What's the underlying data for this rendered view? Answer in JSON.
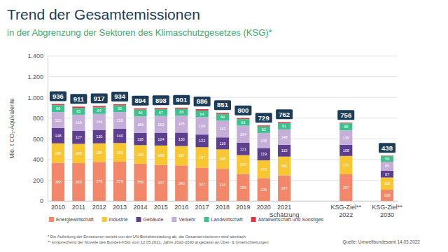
{
  "chart_data": {
    "type": "bar",
    "stacked": true,
    "data_labels": true,
    "grid": true,
    "legend": "bottom",
    "title": "Trend der Gesamtemissionen",
    "subtitle": "in der Abgrenzung der Sektoren des Klimaschutzgesetzes (KSG)*",
    "y_label": "Mio. t CO₂-Äquivalente",
    "categories": [
      "2010",
      "2011",
      "2012",
      "2013",
      "2014",
      "2015",
      "2016",
      "2017",
      "2018",
      "2019",
      "2020",
      "2021 Schätzung",
      null,
      null,
      "KSG-Ziel** 2022",
      null,
      "KSG-Ziel** 2030"
    ],
    "series": [
      {
        "name": "Energiewirtschaft",
        "color": "#f2876a",
        "values": [
          368,
          365,
          376,
          379,
          359,
          347,
          343,
          322,
          310,
          259,
          220,
          247,
          null,
          null,
          257,
          null,
          108
        ]
      },
      {
        "name": "Industrie",
        "color": "#f8c630",
        "values": [
          188,
          186,
          180,
          180,
          180,
          188,
          187,
          197,
          188,
          183,
          172,
          181,
          null,
          null,
          177,
          null,
          118
        ]
      },
      {
        "name": "Gebäude",
        "color": "#5c3f8e",
        "values": [
          148,
          127,
          130,
          140,
          118,
          124,
          130,
          122,
          116,
          121,
          119,
          115,
          null,
          null,
          108,
          null,
          67
        ]
      },
      {
        "name": "Verkehr",
        "color": "#c5afd8",
        "values": [
          153,
          155,
          154,
          158,
          159,
          162,
          165,
          168,
          162,
          164,
          146,
          148,
          null,
          null,
          139,
          null,
          85
        ]
      },
      {
        "name": "Landwirtschaft",
        "color": "#3cc28e",
        "values": [
          68,
          65,
          64,
          65,
          66,
          67,
          66,
          64,
          64,
          63,
          62,
          61,
          null,
          null,
          68,
          null,
          56
        ]
      },
      {
        "name": "Abfallwirtschaft und Sonstiges",
        "color": "#e3343f",
        "data_labels": false,
        "values": [
          11,
          13,
          13,
          12,
          12,
          10,
          10,
          13,
          11,
          10,
          10,
          10,
          null,
          null,
          7,
          null,
          4
        ]
      }
    ],
    "totals": [
      936,
      911,
      917,
      934,
      894,
      898,
      901,
      886,
      851,
      800,
      729,
      762,
      null,
      null,
      756,
      null,
      438
    ],
    "ylim": [
      0,
      1400
    ],
    "yticks": [
      0,
      200,
      400,
      600,
      800,
      {
        "value": 1000,
        "label": "1.000"
      },
      {
        "value": 1200,
        "label": "1.200"
      },
      {
        "value": 1400,
        "label": "1.400"
      }
    ],
    "notes": [
      "* Die Aufteilung der Emissionen weicht von der UN-Berichterstattung ab, die Gesamtemissionen sind identisch",
      "** entsprechend der Novelle des Bundes-KSG vom 12.05.2021, Jahre 2022-2030 angepasst an Über- & Unterschreitungen"
    ],
    "source": "Quelle: Umweltbundesamt 14.03.2022"
  }
}
